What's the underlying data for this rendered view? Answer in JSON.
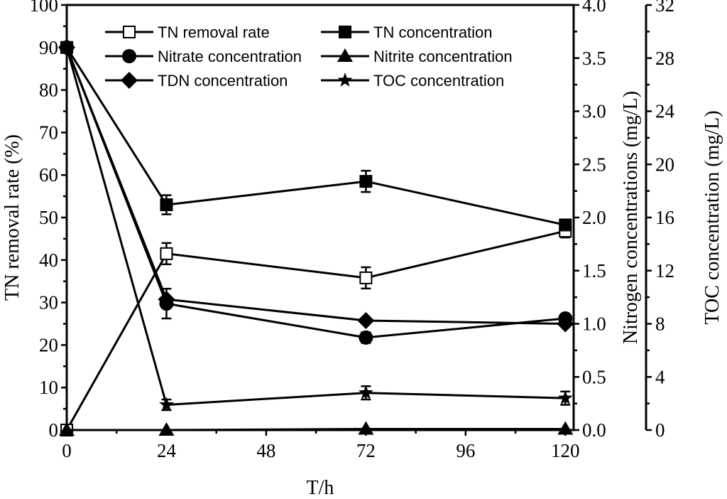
{
  "chart_data": {
    "type": "line",
    "x": [
      0,
      24,
      72,
      120
    ],
    "xlabel": "T/h",
    "xlim": [
      0,
      122
    ],
    "x_ticks": [
      0,
      24,
      48,
      72,
      96,
      120
    ],
    "axes": {
      "left": {
        "label": "TN removal rate (%)",
        "range": [
          0,
          100
        ],
        "ticks": [
          0,
          10,
          20,
          30,
          40,
          50,
          60,
          70,
          80,
          90,
          100
        ],
        "tick_labels": [
          "0",
          "10",
          "20",
          "30",
          "40",
          "50",
          "60",
          "70",
          "80",
          "90",
          "100"
        ]
      },
      "right1": {
        "label": "Nitrogen concentrations (mg/L)",
        "range": [
          0,
          4.0
        ],
        "ticks": [
          0,
          0.5,
          1.0,
          1.5,
          2.0,
          2.5,
          3.0,
          3.5,
          4.0
        ],
        "tick_labels": [
          "0.0",
          "0.5",
          "1.0",
          "1.5",
          "2.0",
          "2.5",
          "3.0",
          "3.5",
          "4.0"
        ]
      },
      "right2": {
        "label": "TOC concentration (mg/L)",
        "range": [
          0,
          32
        ],
        "ticks": [
          0,
          4,
          8,
          12,
          16,
          20,
          24,
          28,
          32
        ],
        "tick_labels": [
          "0",
          "4",
          "8",
          "12",
          "16",
          "20",
          "24",
          "28",
          "32"
        ]
      }
    },
    "series": [
      {
        "name": "TN removal rate",
        "axis": "left",
        "marker": "open-square",
        "values": [
          0,
          41.5,
          35.8,
          46.8
        ],
        "errors": [
          0,
          2.5,
          2.5,
          1.5
        ]
      },
      {
        "name": "TN concentration",
        "axis": "right1",
        "marker": "filled-square",
        "values": [
          3.6,
          2.12,
          2.34,
          1.93
        ],
        "errors": [
          0.05,
          0.09,
          0.1,
          0.05
        ]
      },
      {
        "name": "Nitrate concentration",
        "axis": "right1",
        "marker": "circle",
        "values": [
          3.6,
          1.19,
          0.87,
          1.05
        ],
        "errors": [
          0.05,
          0.14,
          0.05,
          0.03
        ]
      },
      {
        "name": "Nitrite concentration",
        "axis": "right1",
        "marker": "triangle",
        "values": [
          0,
          0,
          0.01,
          0.01
        ],
        "errors": [
          0,
          0,
          0,
          0
        ]
      },
      {
        "name": "TDN concentration",
        "axis": "right1",
        "marker": "diamond",
        "values": [
          3.6,
          1.23,
          1.03,
          1.0
        ],
        "errors": [
          0,
          0,
          0,
          0
        ]
      },
      {
        "name": "TOC concentration",
        "axis": "right2",
        "marker": "star",
        "values": [
          28.8,
          1.9,
          2.8,
          2.4
        ],
        "errors": [
          0.3,
          0.4,
          0.5,
          0.5
        ]
      }
    ],
    "legend_position": "top-center"
  }
}
